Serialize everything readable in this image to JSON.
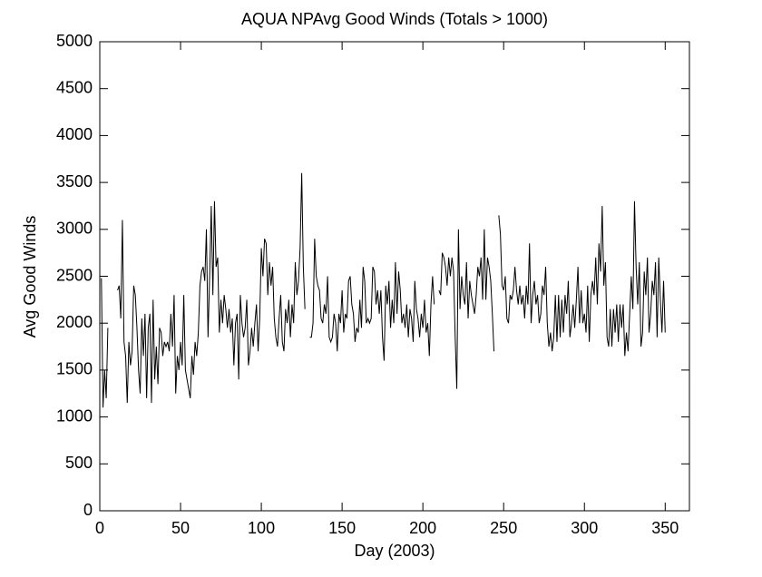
{
  "chart_data": {
    "type": "line",
    "title": "AQUA NPAvg Good Winds (Totals > 1000)",
    "x_label": "Day (2003)",
    "y_label": "Avg Good Winds",
    "xlim": [
      0,
      365
    ],
    "ylim": [
      0,
      5000
    ],
    "xticks": [
      0,
      50,
      100,
      150,
      200,
      250,
      300,
      350
    ],
    "yticks": [
      0,
      500,
      1000,
      1500,
      2000,
      2500,
      3000,
      3500,
      4000,
      4500,
      5000
    ],
    "color": "#000000",
    "x": [
      1,
      2,
      3,
      4,
      5,
      6,
      7,
      8,
      9,
      10,
      11,
      12,
      13,
      14,
      15,
      16,
      17,
      18,
      19,
      20,
      21,
      22,
      23,
      24,
      25,
      26,
      27,
      28,
      29,
      30,
      31,
      32,
      33,
      34,
      35,
      36,
      37,
      38,
      39,
      40,
      41,
      42,
      43,
      44,
      45,
      46,
      47,
      48,
      49,
      50,
      51,
      52,
      53,
      54,
      55,
      56,
      57,
      58,
      59,
      60,
      61,
      62,
      63,
      64,
      65,
      66,
      67,
      68,
      69,
      70,
      71,
      72,
      73,
      74,
      75,
      76,
      77,
      78,
      79,
      80,
      81,
      82,
      83,
      84,
      85,
      86,
      87,
      88,
      89,
      90,
      91,
      92,
      93,
      94,
      95,
      96,
      97,
      98,
      99,
      100,
      101,
      102,
      103,
      104,
      105,
      106,
      107,
      108,
      109,
      110,
      111,
      112,
      113,
      114,
      115,
      116,
      117,
      118,
      119,
      120,
      121,
      122,
      123,
      124,
      125,
      126,
      127,
      128,
      129,
      130,
      131,
      132,
      133,
      134,
      135,
      136,
      137,
      138,
      139,
      140,
      141,
      142,
      143,
      144,
      145,
      146,
      147,
      148,
      149,
      150,
      151,
      152,
      153,
      154,
      155,
      156,
      157,
      158,
      159,
      160,
      161,
      162,
      163,
      164,
      165,
      166,
      167,
      168,
      169,
      170,
      171,
      172,
      173,
      174,
      175,
      176,
      177,
      178,
      179,
      180,
      181,
      182,
      183,
      184,
      185,
      186,
      187,
      188,
      189,
      190,
      191,
      192,
      193,
      194,
      195,
      196,
      197,
      198,
      199,
      200,
      201,
      202,
      203,
      204,
      205,
      206,
      207,
      208,
      209,
      210,
      211,
      212,
      213,
      214,
      215,
      216,
      217,
      218,
      219,
      220,
      221,
      222,
      223,
      224,
      225,
      226,
      227,
      228,
      229,
      230,
      231,
      232,
      233,
      234,
      235,
      236,
      237,
      238,
      239,
      240,
      241,
      242,
      243,
      244,
      245,
      246,
      247,
      248,
      249,
      250,
      251,
      252,
      253,
      254,
      255,
      256,
      257,
      258,
      259,
      260,
      261,
      262,
      263,
      264,
      265,
      266,
      267,
      268,
      269,
      270,
      271,
      272,
      273,
      274,
      275,
      276,
      277,
      278,
      279,
      280,
      281,
      282,
      283,
      284,
      285,
      286,
      287,
      288,
      289,
      290,
      291,
      292,
      293,
      294,
      295,
      296,
      297,
      298,
      299,
      300,
      301,
      302,
      303,
      304,
      305,
      306,
      307,
      308,
      309,
      310,
      311,
      312,
      313,
      314,
      315,
      316,
      317,
      318,
      319,
      320,
      321,
      322,
      323,
      324,
      325,
      326,
      327,
      328,
      329,
      330,
      331,
      332,
      333,
      334,
      335,
      336,
      337,
      338,
      339,
      340,
      341,
      342,
      343,
      344,
      345,
      346,
      347,
      348,
      349,
      350
    ],
    "values": [
      2480,
      1100,
      1500,
      1200,
      1950,
      null,
      null,
      null,
      null,
      null,
      2350,
      2400,
      2050,
      3100,
      1800,
      1650,
      1150,
      1800,
      1550,
      1700,
      2400,
      2300,
      1950,
      1500,
      1250,
      2050,
      1650,
      2100,
      1200,
      1950,
      2100,
      1150,
      2250,
      1400,
      1750,
      1350,
      1950,
      1900,
      1650,
      1800,
      1750,
      1800,
      1700,
      2100,
      1750,
      2300,
      1250,
      1650,
      1500,
      1800,
      1550,
      2300,
      1500,
      1400,
      1300,
      1200,
      1650,
      1450,
      1800,
      1650,
      1900,
      2400,
      2550,
      2600,
      2450,
      3000,
      1850,
      2500,
      3250,
      2300,
      3300,
      2600,
      2700,
      1900,
      2250,
      2000,
      2300,
      2150,
      1950,
      2150,
      1900,
      2050,
      1550,
      2000,
      2100,
      1400,
      2300,
      2000,
      1850,
      1950,
      2250,
      1550,
      1700,
      1950,
      1750,
      2000,
      2200,
      1700,
      2050,
      2800,
      2500,
      2900,
      2850,
      2300,
      2650,
      2400,
      2600,
      2050,
      1850,
      1750,
      2050,
      2300,
      1800,
      1700,
      2150,
      2000,
      2250,
      1850,
      2200,
      2000,
      2650,
      2300,
      2450,
      2800,
      3600,
      2600,
      2150,
      null,
      null,
      1850,
      1850,
      2000,
      2900,
      2500,
      2400,
      2350,
      2050,
      2000,
      2200,
      2100,
      2500,
      1850,
      1800,
      1850,
      2100,
      2000,
      1700,
      2100,
      2000,
      2350,
      1900,
      2100,
      2050,
      2450,
      2500,
      2200,
      2100,
      1800,
      1950,
      1900,
      2250,
      1950,
      2600,
      2450,
      2000,
      2050,
      2000,
      2050,
      2600,
      2550,
      2200,
      2350,
      2100,
      2350,
      1850,
      1600,
      2400,
      2200,
      2450,
      1950,
      2250,
      2000,
      2650,
      2100,
      2550,
      2350,
      2000,
      2100,
      1950,
      2200,
      1850,
      2150,
      2050,
      1800,
      2450,
      2150,
      2050,
      1850,
      2100,
      1950,
      2250,
      1900,
      2000,
      1650,
      2200,
      2500,
      2200,
      null,
      null,
      2350,
      2300,
      2750,
      2700,
      2600,
      2400,
      2700,
      2500,
      2700,
      2550,
      1850,
      1300,
      3000,
      2150,
      2500,
      2300,
      2200,
      2650,
      2050,
      2450,
      2300,
      2200,
      2100,
      2300,
      2600,
      2500,
      2700,
      2250,
      3000,
      2250,
      2700,
      2600,
      2450,
      2100,
      1700,
      null,
      null,
      3150,
      2950,
      2400,
      2350,
      2500,
      2050,
      2000,
      2300,
      2250,
      2350,
      2600,
      2350,
      2200,
      2400,
      2200,
      2300,
      2050,
      2400,
      2200,
      2850,
      2000,
      2300,
      2450,
      2200,
      2300,
      2000,
      2100,
      2400,
      2300,
      2600,
      2000,
      1750,
      1900,
      1700,
      1850,
      2300,
      1800,
      2300,
      1850,
      2250,
      1900,
      2300,
      2100,
      2450,
      1850,
      2000,
      2200,
      1950,
      2250,
      2600,
      2000,
      2350,
      2000,
      2100,
      1900,
      2400,
      1800,
      2300,
      2450,
      2300,
      2700,
      2200,
      2850,
      2550,
      3250,
      2400,
      2650,
      1850,
      1750,
      2150,
      1750,
      2150,
      1900,
      2200,
      1800,
      2200,
      1950,
      2200,
      1650,
      1900,
      1700,
      2100,
      2500,
      2150,
      3300,
      2600,
      2200,
      2650,
      1750,
      1900,
      2550,
      2300,
      2700,
      1900,
      2100,
      2450,
      2300,
      2650,
      1850,
      2700,
      2250,
      1900,
      2450,
      1900
    ]
  }
}
